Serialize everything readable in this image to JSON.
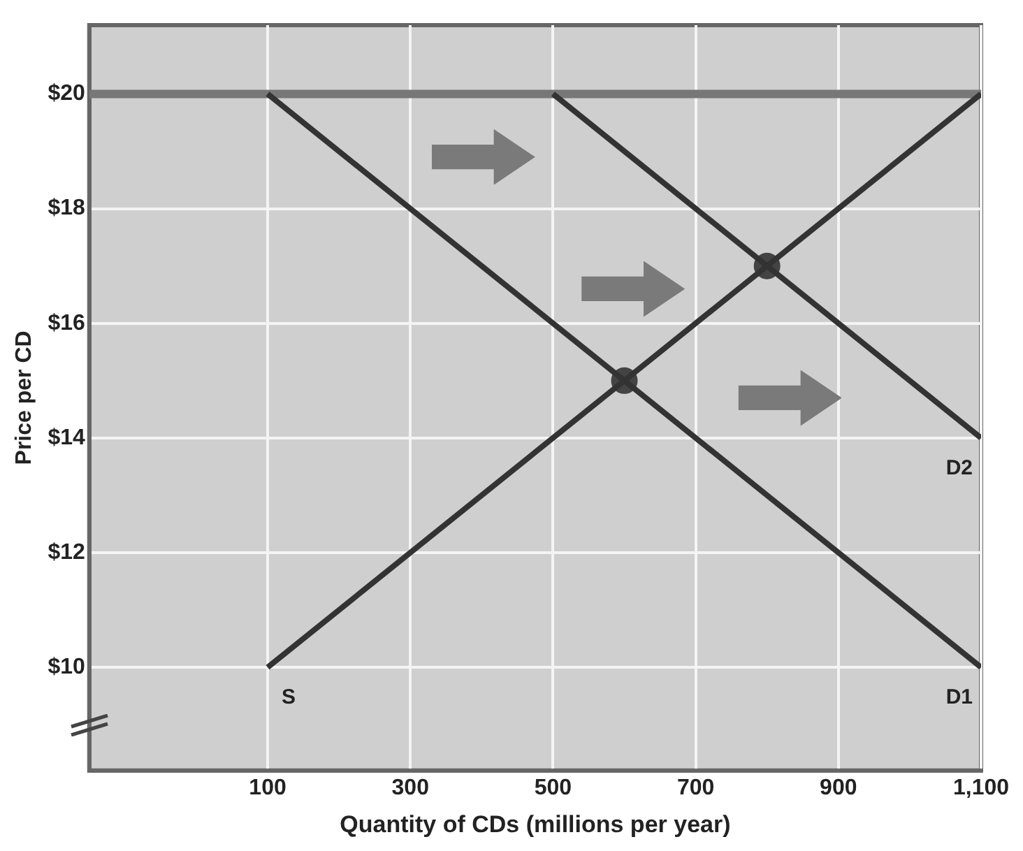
{
  "chart_data": {
    "type": "line",
    "xlabel": "Quantity of CDs (millions per year)",
    "ylabel": "Price per CD",
    "xlim": [
      -150,
      1100
    ],
    "ylim": [
      8.2,
      21.2
    ],
    "xticks": [
      100,
      300,
      500,
      700,
      900,
      {
        "value": 1100,
        "label": "1,100"
      }
    ],
    "yticks": [
      {
        "value": 10,
        "label": "$10"
      },
      {
        "value": 12,
        "label": "$12"
      },
      {
        "value": 14,
        "label": "$14"
      },
      {
        "value": 16,
        "label": "$16"
      },
      {
        "value": 18,
        "label": "$18"
      },
      {
        "value": 20,
        "label": "$20"
      }
    ],
    "grid": true,
    "legend": false,
    "marker": "none",
    "line_style": "solid",
    "series": [
      {
        "name": "S",
        "color": "#333333",
        "x": [
          100,
          1100
        ],
        "values": [
          10,
          20
        ]
      },
      {
        "name": "D1",
        "color": "#333333",
        "x": [
          100,
          1100
        ],
        "values": [
          20,
          10
        ]
      },
      {
        "name": "D2",
        "color": "#333333",
        "x": [
          500,
          1100
        ],
        "values": [
          20,
          14
        ]
      },
      {
        "type": "scatter",
        "color": "#444444",
        "x": [
          600,
          800
        ],
        "values": [
          15,
          17
        ],
        "marker": "circle"
      }
    ],
    "ref_lines": [
      {
        "axis": "y",
        "value": 20,
        "color": "#777777"
      }
    ]
  }
}
